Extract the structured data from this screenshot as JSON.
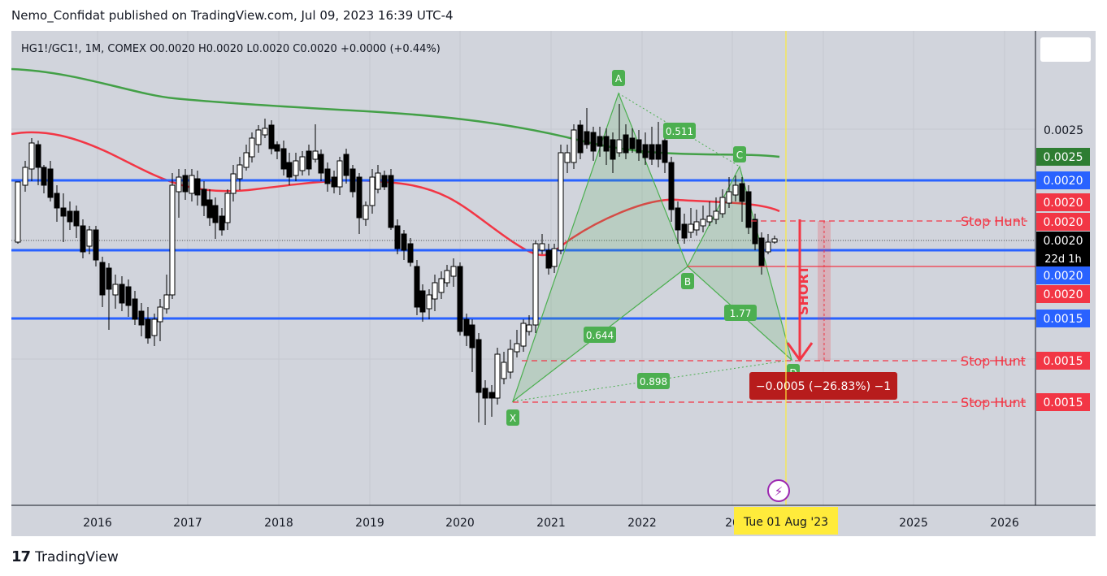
{
  "header": {
    "text": "Nemo_Confidat published on TradingView.com, Jul 09, 2023 16:39 UTC-4"
  },
  "footer": {
    "brand": "TradingView",
    "brand_mark": "17"
  },
  "colors": {
    "bg": "#d1d4dc",
    "up": "#ffffff",
    "down": "#000000",
    "blue": "#2962ff",
    "red": "#f23645",
    "green": "#43a047",
    "pattern": "#4caf50",
    "cursor": "#ffeb3b"
  },
  "chart_data": {
    "type": "candlestick",
    "symbol_line": "HG1!/GC1!, 1M, COMEX  O0.0020  H0.0020  L0.0020  C0.0020  +0.0000 (+0.44%)",
    "x_ticks": [
      "2016",
      "2017",
      "2018",
      "2019",
      "2020",
      "2021",
      "2022",
      "20",
      "2025",
      "2026"
    ],
    "cursor_date": "Tue 01 Aug '23",
    "price_scale": {
      "tick": "0.0025",
      "labels": [
        {
          "text": "0.0025",
          "color": "#2e7d32"
        },
        {
          "text": "0.0020",
          "color": "#2962ff"
        },
        {
          "text": "0.0020",
          "color": "#f23645"
        },
        {
          "text": "0.0020",
          "color": "#f23645"
        },
        {
          "text": "0.0020",
          "color": "#000000",
          "sub": "22d 1h"
        },
        {
          "text": "0.0020",
          "color": "#2962ff"
        },
        {
          "text": "0.0020",
          "color": "#f23645"
        },
        {
          "text": "0.0015",
          "color": "#2962ff"
        },
        {
          "text": "0.0015",
          "color": "#f23645"
        },
        {
          "text": "0.0015",
          "color": "#f23645"
        }
      ]
    },
    "pattern_points": [
      "X",
      "A",
      "B",
      "C",
      "D"
    ],
    "pattern_ratios": [
      "0.511",
      "0.644",
      "0.898",
      "1.77"
    ],
    "annotations": {
      "stop_hunt": [
        "Stop Hunt",
        "Stop Hunt",
        "Stop Hunt"
      ],
      "short": "SHORT",
      "measure": "−0.0005 (−26.83%) −1"
    }
  }
}
